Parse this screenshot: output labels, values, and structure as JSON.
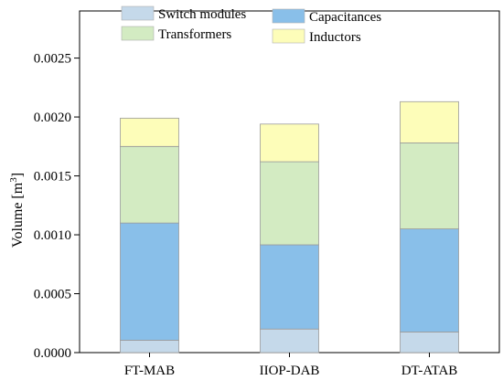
{
  "chart_data": {
    "type": "bar",
    "stacked": true,
    "title": "",
    "xlabel": "",
    "ylabel": "Volume [m",
    "ylabel_superscript": "3",
    "ylabel_suffix": "]",
    "ylim": [
      0,
      0.0029
    ],
    "yticks": [
      {
        "value": 0,
        "label": "0.0000"
      },
      {
        "value": 0.0005,
        "label": "0.0005"
      },
      {
        "value": 0.001,
        "label": "0.0010"
      },
      {
        "value": 0.0015,
        "label": "0.0015"
      },
      {
        "value": 0.002,
        "label": "0.0020"
      },
      {
        "value": 0.0025,
        "label": "0.0025"
      }
    ],
    "categories": [
      "FT-MAB",
      "IIOP-DAB",
      "DT-ATAB"
    ],
    "series": [
      {
        "name": "Switch modules",
        "color": "#c5d9ea",
        "values": [
          0.000105,
          0.0002,
          0.000175
        ]
      },
      {
        "name": "Capacitances",
        "color": "#89bfe9",
        "values": [
          0.000995,
          0.000715,
          0.000875
        ]
      },
      {
        "name": "Transformers",
        "color": "#d3ebc2",
        "values": [
          0.00065,
          0.000705,
          0.00073
        ]
      },
      {
        "name": "Inductors",
        "color": "#fdfdb9",
        "values": [
          0.00024,
          0.00032,
          0.00035
        ]
      }
    ],
    "legend_position": "top",
    "grid": false
  }
}
